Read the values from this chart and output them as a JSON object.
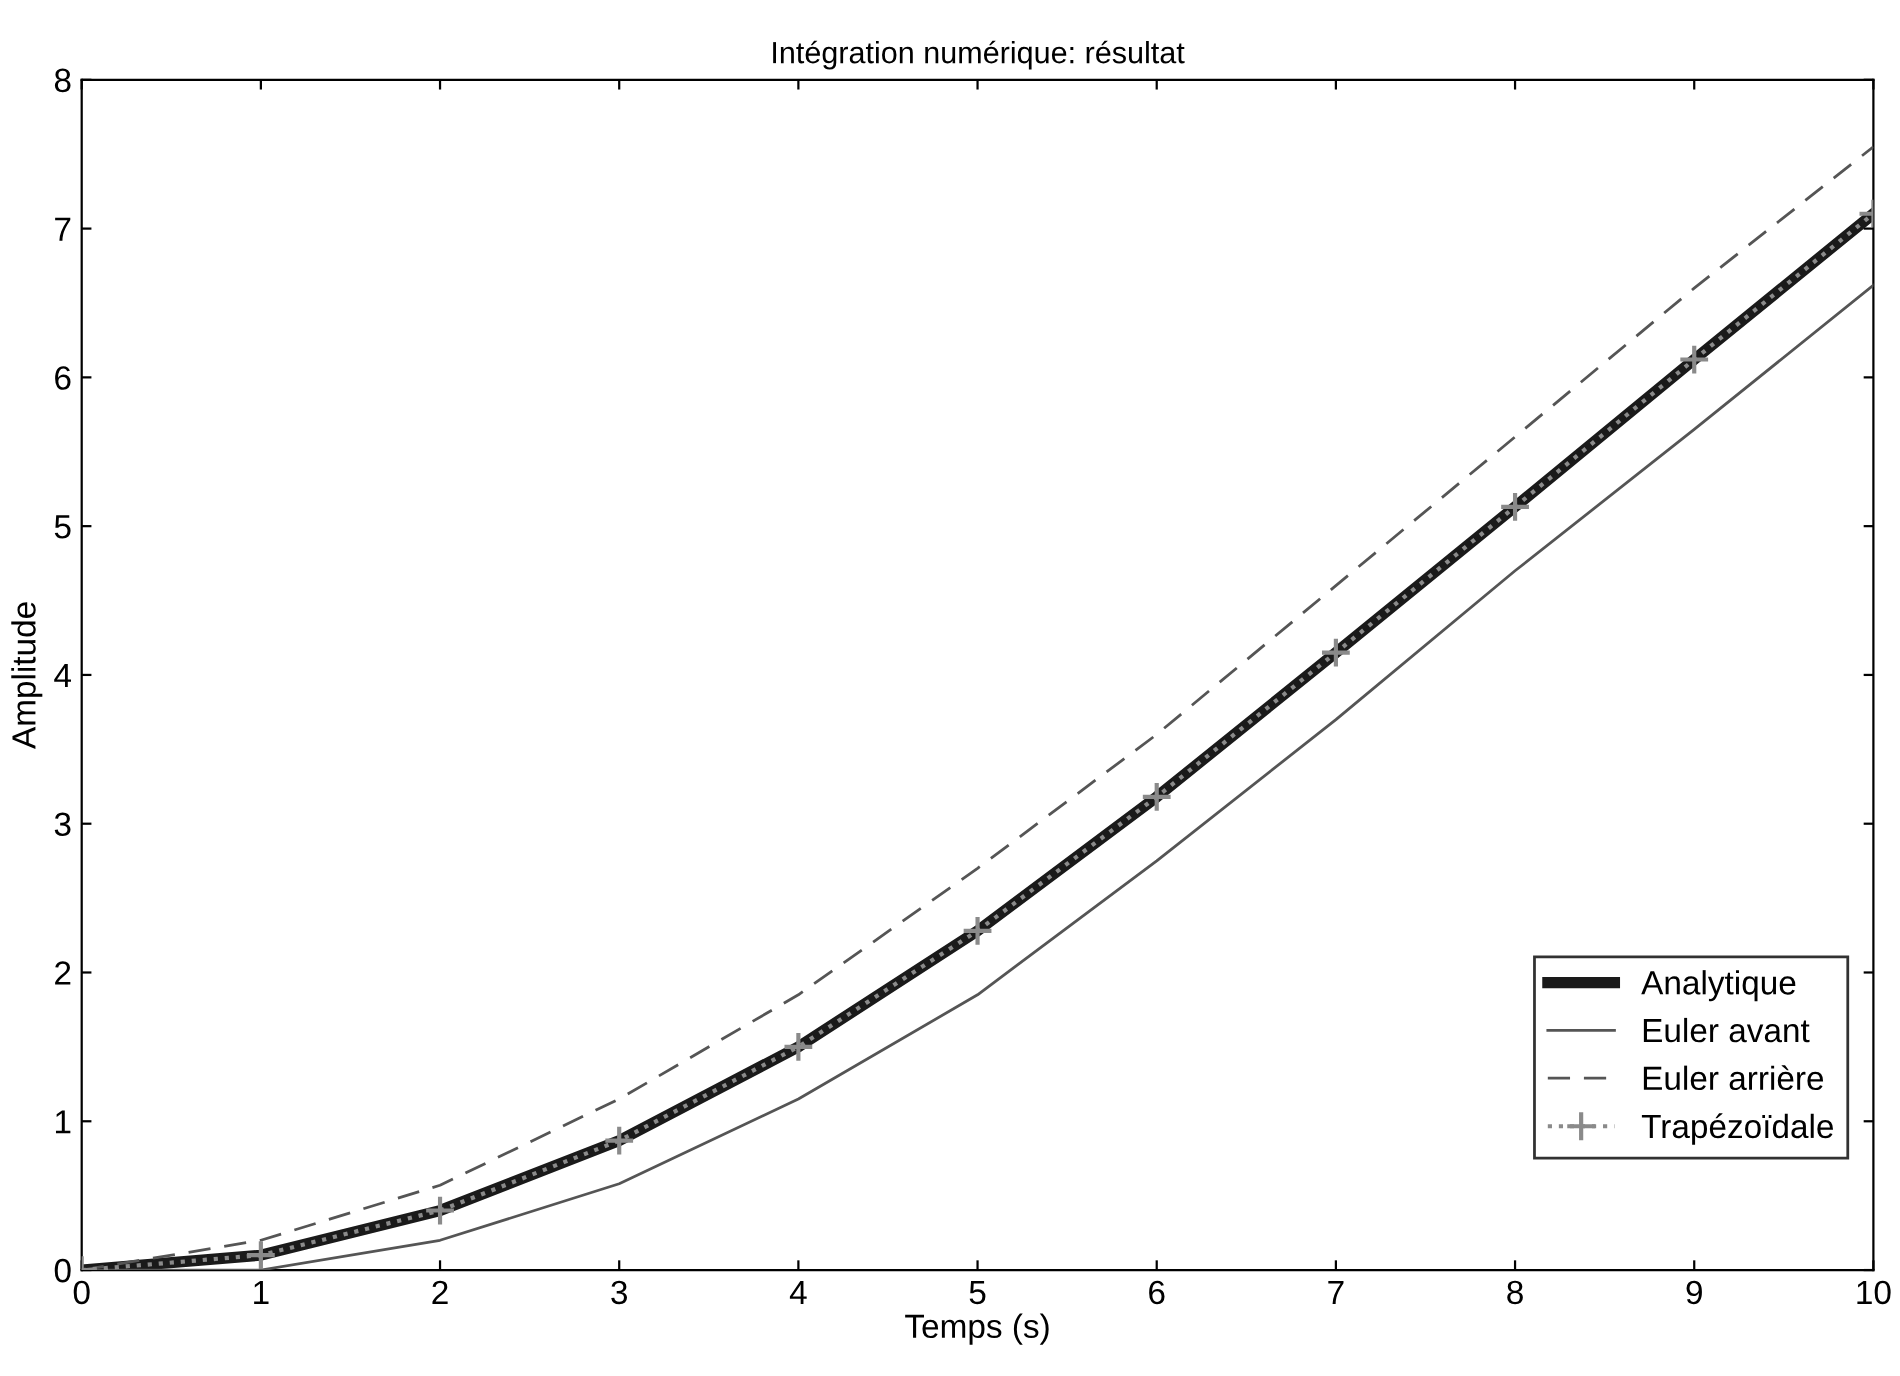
{
  "chart_data": {
    "type": "line",
    "title": "Intégration numérique: résultat",
    "xlabel": "Temps (s)",
    "ylabel": "Amplitude",
    "x": [
      0,
      1,
      2,
      3,
      4,
      5,
      6,
      7,
      8,
      9,
      10
    ],
    "series": [
      {
        "name": "Analytique",
        "color": "#1a1a1a",
        "values": [
          0,
          0.1,
          0.4,
          0.87,
          1.5,
          2.28,
          3.18,
          4.15,
          5.13,
          6.12,
          7.1
        ],
        "line_style": "solid",
        "marker": "none"
      },
      {
        "name": "Euler avant",
        "color": "#555555",
        "values": [
          0,
          0,
          0.2,
          0.58,
          1.15,
          1.85,
          2.75,
          3.7,
          4.7,
          5.65,
          6.62
        ],
        "line_style": "solid",
        "marker": "none"
      },
      {
        "name": "Euler arrière",
        "color": "#555555",
        "values": [
          0,
          0.2,
          0.57,
          1.15,
          1.85,
          2.7,
          3.6,
          4.6,
          5.6,
          6.6,
          7.55
        ],
        "line_style": "dashed",
        "marker": "none"
      },
      {
        "name": "Trapézoïdale",
        "color": "#8a8a8a",
        "values": [
          0,
          0.1,
          0.4,
          0.87,
          1.5,
          2.28,
          3.18,
          4.15,
          5.13,
          6.12,
          7.1
        ],
        "line_style": "dotted",
        "marker": "cross"
      }
    ],
    "xlim": [
      0,
      10
    ],
    "ylim": [
      0,
      8
    ],
    "xticks": [
      0,
      1,
      2,
      3,
      4,
      5,
      6,
      7,
      8,
      9,
      10
    ],
    "yticks": [
      0,
      1,
      2,
      3,
      4,
      5,
      6,
      7,
      8
    ],
    "grid": false,
    "legend": "bottom right"
  }
}
